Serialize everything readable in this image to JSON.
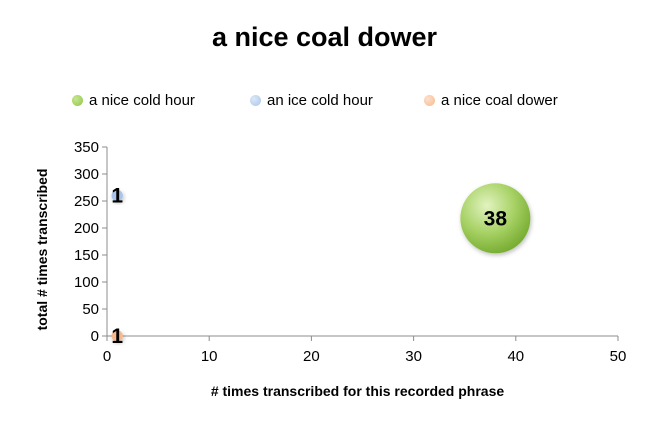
{
  "chart_data": {
    "type": "bubble",
    "title": "a nice coal dower",
    "xlabel": "# times transcribed for this recorded phrase",
    "ylabel": "total # times transcribed",
    "xlim": [
      0,
      50
    ],
    "ylim": [
      0,
      350
    ],
    "x_ticks": [
      0,
      10,
      20,
      30,
      40,
      50
    ],
    "y_ticks": [
      0,
      50,
      100,
      150,
      200,
      250,
      300,
      350
    ],
    "legend_position": "top",
    "grid": false,
    "series": [
      {
        "name": "a nice cold hour",
        "color": "#8fc54a",
        "points": [
          {
            "x": 38,
            "y": 218,
            "size": 38,
            "label": "38"
          }
        ]
      },
      {
        "name": "an ice cold hour",
        "color": "#a9c4e8",
        "points": [
          {
            "x": 1,
            "y": 260,
            "size": 1,
            "label": "1"
          }
        ]
      },
      {
        "name": "a nice coal dower",
        "color": "#f6b98e",
        "points": [
          {
            "x": 1,
            "y": 0,
            "size": 1,
            "label": "1"
          }
        ]
      }
    ]
  }
}
